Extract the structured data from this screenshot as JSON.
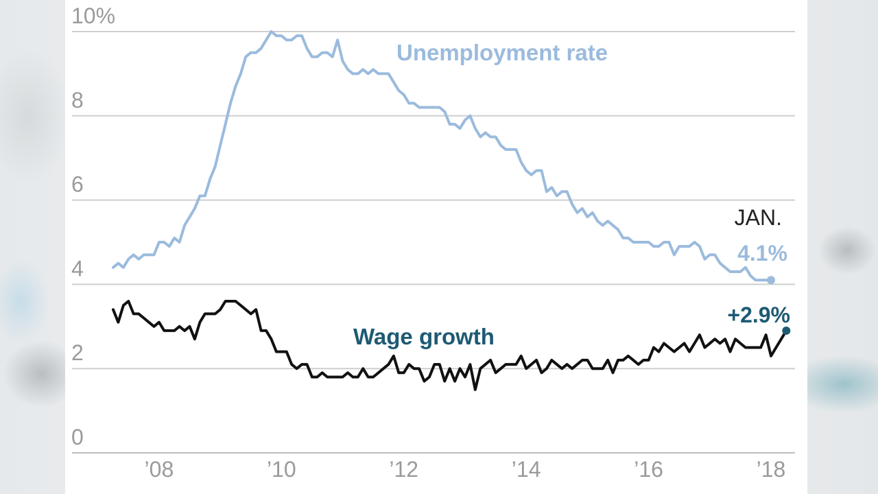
{
  "chart_data": {
    "type": "line",
    "title": "",
    "xlabel": "",
    "ylabel": "",
    "x_start": 2007.25,
    "x_step_months": 1,
    "xlim": [
      2007.0,
      2018.5
    ],
    "ylim": [
      0,
      10
    ],
    "y_ticks": [
      {
        "value": 0,
        "label": "0"
      },
      {
        "value": 2,
        "label": "2"
      },
      {
        "value": 4,
        "label": "4"
      },
      {
        "value": 6,
        "label": "6"
      },
      {
        "value": 8,
        "label": "8"
      },
      {
        "value": 10,
        "label": "10%"
      }
    ],
    "x_ticks": [
      {
        "value": 2008,
        "label": "’08"
      },
      {
        "value": 2010,
        "label": "’10"
      },
      {
        "value": 2012,
        "label": "’12"
      },
      {
        "value": 2014,
        "label": "’14"
      },
      {
        "value": 2016,
        "label": "’16"
      },
      {
        "value": 2018,
        "label": "’18"
      }
    ],
    "grid": true,
    "series": [
      {
        "name": "Unemployment rate",
        "color": "#9bbbdd",
        "end_label": "4.1%",
        "values": [
          4.4,
          4.5,
          4.4,
          4.6,
          4.7,
          4.6,
          4.7,
          4.7,
          4.7,
          5.0,
          5.0,
          4.9,
          5.1,
          5.0,
          5.4,
          5.6,
          5.8,
          6.1,
          6.1,
          6.5,
          6.8,
          7.3,
          7.8,
          8.3,
          8.7,
          9.0,
          9.4,
          9.5,
          9.5,
          9.6,
          9.8,
          10.0,
          9.9,
          9.9,
          9.8,
          9.8,
          9.9,
          9.9,
          9.6,
          9.4,
          9.4,
          9.5,
          9.5,
          9.4,
          9.8,
          9.3,
          9.1,
          9.0,
          9.0,
          9.1,
          9.0,
          9.1,
          9.0,
          9.0,
          9.0,
          8.8,
          8.6,
          8.5,
          8.3,
          8.3,
          8.2,
          8.2,
          8.2,
          8.2,
          8.2,
          8.1,
          7.8,
          7.8,
          7.7,
          7.9,
          8.0,
          7.7,
          7.5,
          7.6,
          7.5,
          7.5,
          7.3,
          7.2,
          7.2,
          7.2,
          6.9,
          6.7,
          6.6,
          6.7,
          6.7,
          6.2,
          6.3,
          6.1,
          6.2,
          6.2,
          5.9,
          5.7,
          5.8,
          5.6,
          5.7,
          5.5,
          5.4,
          5.5,
          5.4,
          5.3,
          5.1,
          5.1,
          5.0,
          5.0,
          5.0,
          5.0,
          4.9,
          4.9,
          5.0,
          5.0,
          4.7,
          4.9,
          4.9,
          4.9,
          5.0,
          4.9,
          4.6,
          4.7,
          4.7,
          4.5,
          4.4,
          4.3,
          4.3,
          4.3,
          4.4,
          4.2,
          4.1,
          4.1,
          4.1,
          4.1
        ]
      },
      {
        "name": "Wage growth",
        "color": "#111111",
        "end_label": "+2.9%",
        "values": [
          3.4,
          3.1,
          3.5,
          3.6,
          3.3,
          3.3,
          3.2,
          3.1,
          3.0,
          3.1,
          2.9,
          2.9,
          2.9,
          3.0,
          2.9,
          3.0,
          2.7,
          3.1,
          3.3,
          3.3,
          3.3,
          3.4,
          3.6,
          3.6,
          3.6,
          3.5,
          3.4,
          3.3,
          3.4,
          2.9,
          2.9,
          2.7,
          2.4,
          2.4,
          2.4,
          2.1,
          2.0,
          2.1,
          2.1,
          1.8,
          1.8,
          1.9,
          1.8,
          1.8,
          1.8,
          1.8,
          1.9,
          1.8,
          1.8,
          2.0,
          1.8,
          1.8,
          1.9,
          2.0,
          2.1,
          2.3,
          1.9,
          1.9,
          2.1,
          2.0,
          2.0,
          1.7,
          1.8,
          2.1,
          2.1,
          1.7,
          2.0,
          1.7,
          2.0,
          1.8,
          2.1,
          1.5,
          2.0,
          2.1,
          2.2,
          1.9,
          2.0,
          2.1,
          2.1,
          2.1,
          2.3,
          2.0,
          2.1,
          2.2,
          1.9,
          2.0,
          2.2,
          2.1,
          2.0,
          2.1,
          2.0,
          2.1,
          2.2,
          2.2,
          2.0,
          2.0,
          2.0,
          2.2,
          1.9,
          2.2,
          2.2,
          2.3,
          2.2,
          2.1,
          2.2,
          2.2,
          2.5,
          2.4,
          2.6,
          2.5,
          2.4,
          2.5,
          2.6,
          2.4,
          2.6,
          2.8,
          2.5,
          2.6,
          2.7,
          2.6,
          2.7,
          2.4,
          2.7,
          2.6,
          2.5,
          2.5,
          2.5,
          2.5,
          2.8,
          2.3,
          2.5,
          2.7,
          2.9
        ]
      }
    ],
    "annotations": {
      "unemp_label": "Unemployment rate",
      "wage_label": "Wage growth",
      "month_label": "JAN.",
      "unemp_end": "4.1%",
      "wage_end": "+2.9%"
    }
  }
}
